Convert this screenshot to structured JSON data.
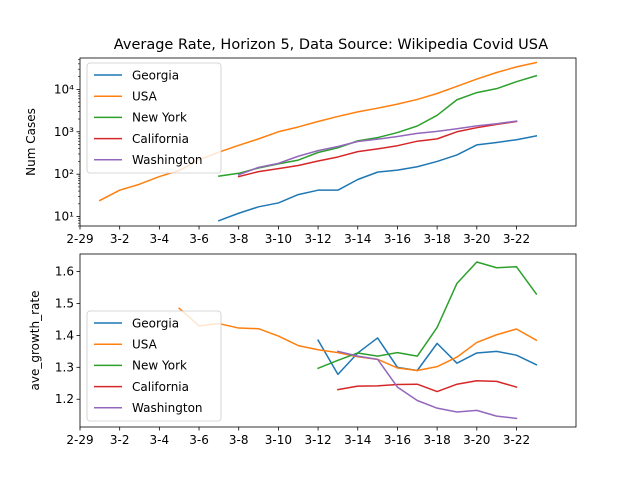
{
  "chart_data": [
    {
      "type": "line",
      "title": "Average Rate, Horizon 5, Data Source: Wikipedia Covid USA",
      "xlabel": "",
      "ylabel": "Num Cases",
      "yscale": "log",
      "ylim": [
        6,
        55000
      ],
      "xlim": [
        0,
        25
      ],
      "x_ticks": [
        {
          "x": 0,
          "label": "2-29"
        },
        {
          "x": 2,
          "label": "3-2"
        },
        {
          "x": 4,
          "label": "3-4"
        },
        {
          "x": 6,
          "label": "3-6"
        },
        {
          "x": 8,
          "label": "3-8"
        },
        {
          "x": 10,
          "label": "3-10"
        },
        {
          "x": 12,
          "label": "3-12"
        },
        {
          "x": 14,
          "label": "3-14"
        },
        {
          "x": 16,
          "label": "3-16"
        },
        {
          "x": 18,
          "label": "3-18"
        },
        {
          "x": 20,
          "label": "3-20"
        },
        {
          "x": 22,
          "label": "3-22"
        }
      ],
      "y_ticks": [
        {
          "v": 10,
          "label": "10¹"
        },
        {
          "v": 100,
          "label": "10²"
        },
        {
          "v": 1000,
          "label": "10³"
        },
        {
          "v": 10000,
          "label": "10⁴"
        }
      ],
      "legend": "upper-left",
      "series": [
        {
          "name": "Georgia",
          "color": "#1f77b4",
          "x": [
            7,
            8,
            9,
            10,
            11,
            12,
            13,
            14,
            15,
            16,
            17,
            18,
            19,
            20,
            21,
            22,
            23
          ],
          "values": [
            8,
            12,
            17,
            21,
            33,
            42,
            42,
            75,
            112,
            125,
            150,
            200,
            285,
            490,
            560,
            650,
            800
          ]
        },
        {
          "name": "USA",
          "color": "#ff7f0e",
          "x": [
            1,
            2,
            3,
            4,
            5,
            6,
            7,
            8,
            9,
            10,
            11,
            12,
            13,
            14,
            15,
            16,
            17,
            18,
            19,
            20,
            21,
            22,
            23
          ],
          "values": [
            24,
            42,
            58,
            88,
            122,
            220,
            330,
            480,
            680,
            1000,
            1300,
            1750,
            2300,
            2950,
            3600,
            4500,
            5800,
            8000,
            11800,
            17500,
            25000,
            34000,
            43000
          ]
        },
        {
          "name": "New York",
          "color": "#2ca02c",
          "x": [
            7,
            8,
            9,
            10,
            11,
            12,
            13,
            14,
            15,
            16,
            17,
            18,
            19,
            20,
            21,
            22,
            23
          ],
          "values": [
            90,
            105,
            140,
            175,
            215,
            325,
            420,
            610,
            730,
            960,
            1370,
            2450,
            5700,
            8400,
            10400,
            15200,
            21000
          ]
        },
        {
          "name": "California",
          "color": "#d62728",
          "x": [
            8,
            9,
            10,
            11,
            12,
            13,
            14,
            15,
            16,
            17,
            18,
            19,
            20,
            21,
            22
          ],
          "values": [
            88,
            115,
            135,
            160,
            205,
            255,
            340,
            395,
            470,
            600,
            680,
            1000,
            1250,
            1500,
            1750
          ]
        },
        {
          "name": "Washington",
          "color": "#9467bd",
          "x": [
            8,
            9,
            10,
            11,
            12,
            13,
            14,
            15,
            16,
            17,
            18,
            19,
            20,
            21,
            22
          ],
          "values": [
            97,
            145,
            180,
            265,
            360,
            450,
            590,
            670,
            775,
            920,
            1020,
            1180,
            1380,
            1550,
            1790
          ]
        }
      ]
    },
    {
      "type": "line",
      "title": "",
      "xlabel": "",
      "ylabel": "ave_growth_rate",
      "ylim": [
        1.113,
        1.655
      ],
      "xlim": [
        0,
        25
      ],
      "x_ticks": [
        {
          "x": 0,
          "label": "2-29"
        },
        {
          "x": 2,
          "label": "3-2"
        },
        {
          "x": 4,
          "label": "3-4"
        },
        {
          "x": 6,
          "label": "3-6"
        },
        {
          "x": 8,
          "label": "3-8"
        },
        {
          "x": 10,
          "label": "3-10"
        },
        {
          "x": 12,
          "label": "3-12"
        },
        {
          "x": 14,
          "label": "3-14"
        },
        {
          "x": 16,
          "label": "3-16"
        },
        {
          "x": 18,
          "label": "3-18"
        },
        {
          "x": 20,
          "label": "3-20"
        },
        {
          "x": 22,
          "label": "3-22"
        }
      ],
      "y_ticks": [
        {
          "v": 1.2,
          "label": "1.2"
        },
        {
          "v": 1.3,
          "label": "1.3"
        },
        {
          "v": 1.4,
          "label": "1.4"
        },
        {
          "v": 1.5,
          "label": "1.5"
        },
        {
          "v": 1.6,
          "label": "1.6"
        }
      ],
      "legend": "center-left",
      "series": [
        {
          "name": "Georgia",
          "color": "#1f77b4",
          "x": [
            12,
            13,
            14,
            15,
            16,
            17,
            18,
            19,
            20,
            21,
            22,
            23
          ],
          "values": [
            1.385,
            1.278,
            1.345,
            1.392,
            1.3,
            1.29,
            1.375,
            1.313,
            1.345,
            1.35,
            1.338,
            1.308
          ]
        },
        {
          "name": "USA",
          "color": "#ff7f0e",
          "x": [
            5,
            6,
            7,
            8,
            9,
            10,
            11,
            12,
            13,
            14,
            15,
            16,
            17,
            18,
            19,
            20,
            21,
            22,
            23
          ],
          "values": [
            1.485,
            1.43,
            1.437,
            1.423,
            1.421,
            1.398,
            1.368,
            1.355,
            1.346,
            1.333,
            1.325,
            1.298,
            1.29,
            1.302,
            1.332,
            1.378,
            1.402,
            1.42,
            1.385
          ]
        },
        {
          "name": "New York",
          "color": "#2ca02c",
          "x": [
            12,
            13,
            14,
            15,
            16,
            17,
            18,
            19,
            20,
            21,
            22,
            23
          ],
          "values": [
            1.297,
            1.322,
            1.345,
            1.335,
            1.346,
            1.335,
            1.425,
            1.563,
            1.63,
            1.612,
            1.615,
            1.53
          ]
        },
        {
          "name": "California",
          "color": "#d62728",
          "x": [
            13,
            14,
            15,
            16,
            17,
            18,
            19,
            20,
            21,
            22
          ],
          "values": [
            1.23,
            1.241,
            1.242,
            1.246,
            1.247,
            1.224,
            1.247,
            1.258,
            1.256,
            1.238
          ]
        },
        {
          "name": "Washington",
          "color": "#9467bd",
          "x": [
            13,
            14,
            15,
            16,
            17,
            18,
            19,
            20,
            21,
            22
          ],
          "values": [
            1.35,
            1.335,
            1.325,
            1.238,
            1.196,
            1.172,
            1.16,
            1.165,
            1.147,
            1.14
          ]
        }
      ]
    }
  ]
}
